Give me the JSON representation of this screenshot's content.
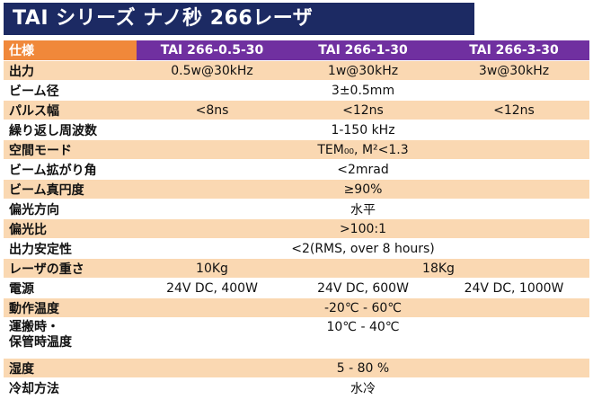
{
  "title": "TAI シリーズ ナノ秒 266レーザ",
  "header": {
    "label": "仕様",
    "models": [
      "TAI 266-0.5-30",
      "TAI 266-1-30",
      "TAI 266-3-30"
    ]
  },
  "rows": {
    "output": {
      "label": "出力",
      "values": [
        "0.5w@30kHz",
        "1w@30kHz",
        "3w@30kHz"
      ]
    },
    "beam_diameter": {
      "label": "ビーム径",
      "value": "3±0.5mm"
    },
    "pulse_width": {
      "label": "パルス幅",
      "values": [
        "<8ns",
        "<12ns",
        "<12ns"
      ]
    },
    "rep_rate": {
      "label": "繰り返し周波数",
      "value": "1-150 kHz"
    },
    "spatial_mode": {
      "label": "空間モード",
      "value": "TEM₀₀, M²<1.3"
    },
    "divergence": {
      "label": "ビーム拡がり角",
      "value": "<2mrad"
    },
    "circularity": {
      "label": "ビーム真円度",
      "value": "≥90%"
    },
    "polarization_dir": {
      "label": "偏光方向",
      "value": "水平"
    },
    "polarization_ratio": {
      "label": "偏光比",
      "value": ">100:1"
    },
    "stability": {
      "label": "出力安定性",
      "value": "<2(RMS, over 8 hours)"
    },
    "weight": {
      "label": "レーザの重さ",
      "values": [
        "10Kg",
        "18Kg"
      ]
    },
    "power_supply": {
      "label": "電源",
      "values": [
        "24V DC, 400W",
        "24V DC, 600W",
        "24V DC, 1000W"
      ]
    },
    "operating_temp": {
      "label": "動作温度",
      "value": "-20℃ - 60℃"
    },
    "storage_temp": {
      "label_line1": "運搬時・",
      "label_line2": "保管時温度",
      "value": "10℃ - 40℃"
    },
    "humidity": {
      "label": "湿度",
      "value": "5 - 80 %"
    },
    "cooling": {
      "label": "冷却方法",
      "value": "水冷"
    }
  },
  "colors": {
    "title_bg": "#1c2a63",
    "header_label_bg": "#f0883a",
    "header_model_bg": "#7030a0",
    "stripe": "#fad8b2"
  }
}
